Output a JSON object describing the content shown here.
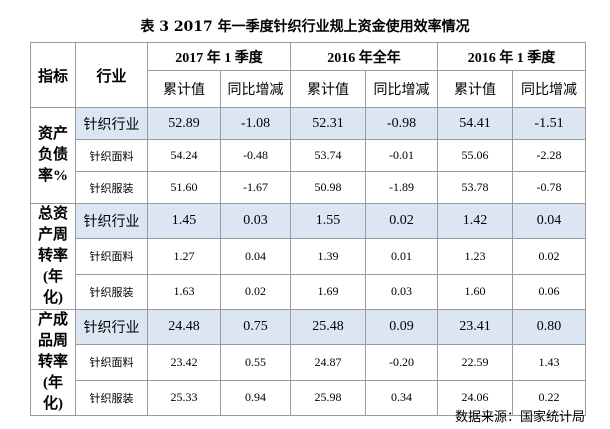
{
  "title": "表 3 2017 年一季度针织行业规上资金使用效率情况",
  "table": {
    "header": [
      "指标",
      "行业",
      "2017 年 1 季度",
      "2016 年全年",
      "2016 年 1 季度"
    ],
    "subheader": [
      "累计值",
      "同比增减",
      "累计值",
      "同比增减",
      "累计值",
      "同比增减"
    ],
    "groups": [
      {
        "indicator": "资产负债率%",
        "rows": [
          {
            "industry": "针织行业",
            "values": [
              "52.89",
              "-1.08",
              "52.31",
              "-0.98",
              "54.41",
              "-1.51"
            ]
          },
          {
            "industry": "针织面料",
            "values": [
              "54.24",
              "-0.48",
              "53.74",
              "-0.01",
              "55.06",
              "-2.28"
            ]
          },
          {
            "industry": "针织服装",
            "values": [
              "51.60",
              "-1.67",
              "50.98",
              "-1.89",
              "53.78",
              "-0.78"
            ]
          }
        ]
      },
      {
        "indicator": "总资产周转率(年化)",
        "rows": [
          {
            "industry": "针织行业",
            "values": [
              "1.45",
              "0.03",
              "1.55",
              "0.02",
              "1.42",
              "0.04"
            ]
          },
          {
            "industry": "针织面料",
            "values": [
              "1.27",
              "0.04",
              "1.39",
              "0.01",
              "1.23",
              "0.02"
            ]
          },
          {
            "industry": "针织服装",
            "values": [
              "1.63",
              "0.02",
              "1.69",
              "0.03",
              "1.60",
              "0.06"
            ]
          }
        ]
      },
      {
        "indicator": "产成品周转率(年化)",
        "rows": [
          {
            "industry": "针织行业",
            "values": [
              "24.48",
              "0.75",
              "25.48",
              "0.09",
              "23.41",
              "0.80"
            ]
          },
          {
            "industry": "针织面料",
            "values": [
              "23.42",
              "0.55",
              "24.87",
              "-0.20",
              "22.59",
              "1.43"
            ]
          },
          {
            "industry": "针织服装",
            "values": [
              "25.33",
              "0.94",
              "25.98",
              "0.34",
              "24.06",
              "0.22"
            ]
          }
        ]
      }
    ]
  },
  "source": "数据来源：国家统计局"
}
